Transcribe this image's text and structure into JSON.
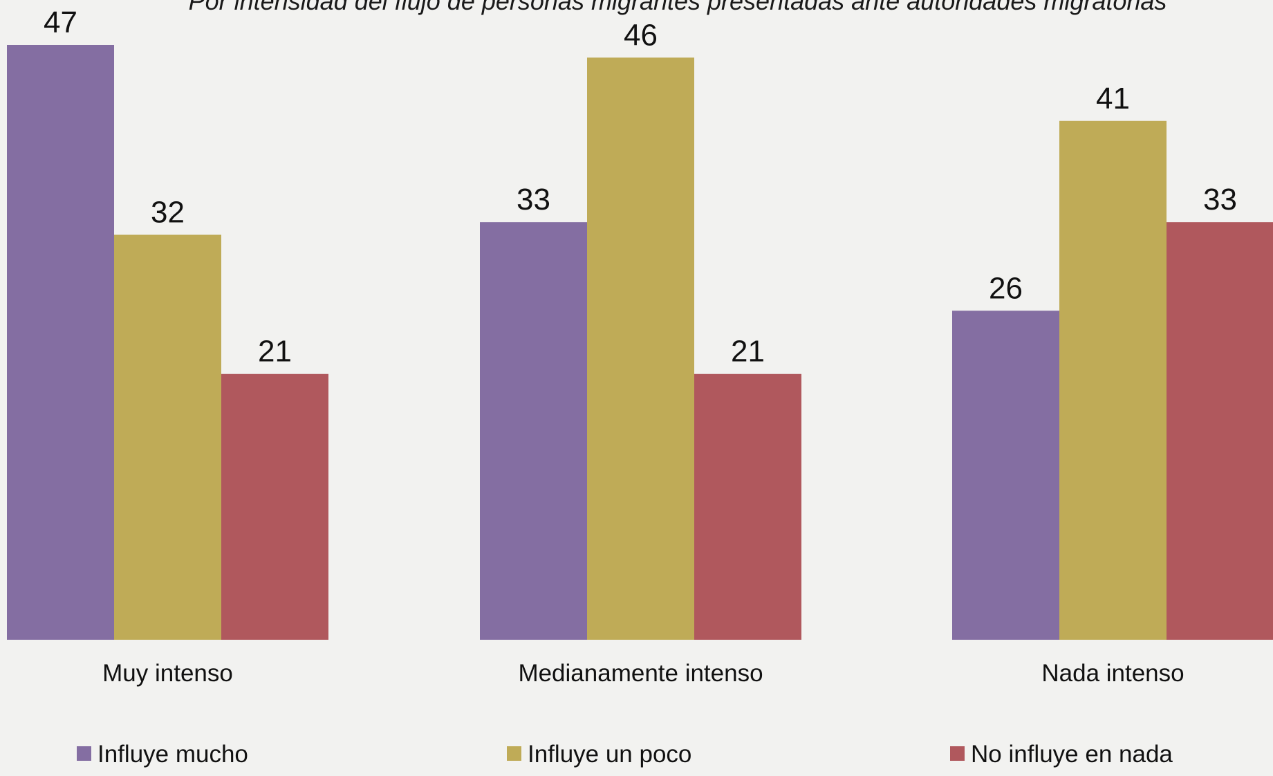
{
  "chart_data": {
    "type": "bar",
    "subtitle": "Por intensidad del flujo de personas migrantes presentadas ante autoridades migratorias",
    "categories": [
      "Muy intenso",
      "Medianamente intenso",
      "Nada intenso"
    ],
    "series": [
      {
        "name": "Influye mucho",
        "color": "#846ea2",
        "values": [
          47,
          33,
          26
        ]
      },
      {
        "name": "Influye un poco",
        "color": "#bfab57",
        "values": [
          32,
          46,
          41
        ]
      },
      {
        "name": "No influye en nada",
        "color": "#b0585d",
        "values": [
          21,
          21,
          33
        ]
      }
    ],
    "ylim": [
      0,
      47
    ],
    "grid": false,
    "legend_position": "bottom"
  }
}
